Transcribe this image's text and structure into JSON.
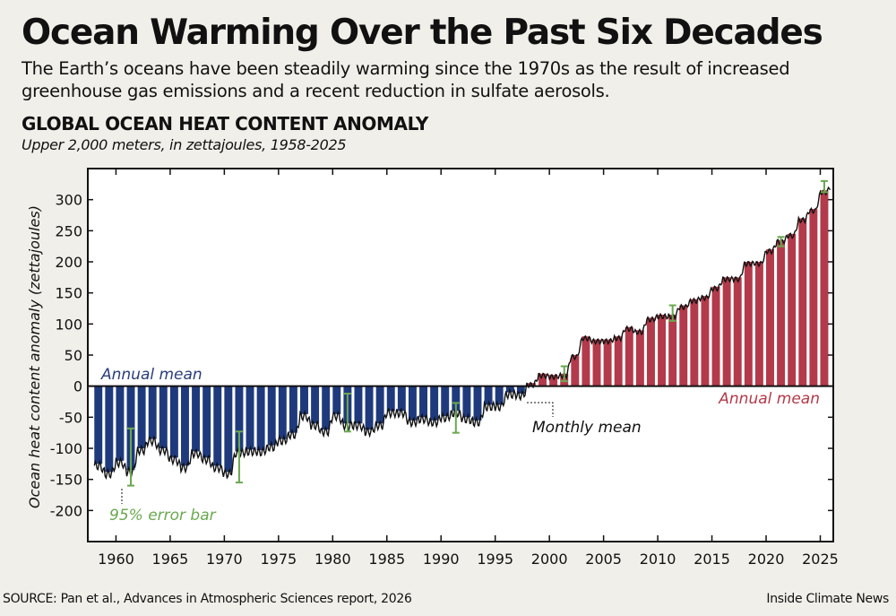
{
  "title": "Ocean Warming Over the Past Six Decades",
  "subtitle": "The Earth’s oceans have been steadily warming since the 1970s as the result of increased greenhouse gas emissions and a recent reduction in sulfate aerosols.",
  "source": "SOURCE: Pan et al., Advances in Atmospheric Sciences report, 2026",
  "credit": "Inside Climate News",
  "chart_data": {
    "type": "bar",
    "title": "GLOBAL OCEAN HEAT CONTENT ANOMALY",
    "subtitle": "Upper 2,000 meters, in zettajoules, 1958-2025",
    "xlabel": "",
    "ylabel": "Ocean heat content  anomaly (zettajoules)",
    "xlim": [
      1957.4,
      2026.2
    ],
    "ylim": [
      -250,
      350
    ],
    "x_ticks": [
      1960,
      1965,
      1970,
      1975,
      1980,
      1985,
      1990,
      1995,
      2000,
      2005,
      2010,
      2015,
      2020,
      2025
    ],
    "y_ticks": [
      -200,
      -150,
      -100,
      -50,
      0,
      50,
      100,
      150,
      200,
      250,
      300
    ],
    "grid": false,
    "colors": {
      "negative": "#1f3a7c",
      "positive": "#b33a4a",
      "error_bar": "#6aa84f",
      "monthly_line": "#111111"
    },
    "years": [
      1958,
      1959,
      1960,
      1961,
      1962,
      1963,
      1964,
      1965,
      1966,
      1967,
      1968,
      1969,
      1970,
      1971,
      1972,
      1973,
      1974,
      1975,
      1976,
      1977,
      1978,
      1979,
      1980,
      1981,
      1982,
      1983,
      1984,
      1985,
      1986,
      1987,
      1988,
      1989,
      1990,
      1991,
      1992,
      1993,
      1994,
      1995,
      1996,
      1997,
      1998,
      1999,
      2000,
      2001,
      2002,
      2003,
      2004,
      2005,
      2006,
      2007,
      2008,
      2009,
      2010,
      2011,
      2012,
      2013,
      2014,
      2015,
      2016,
      2017,
      2018,
      2019,
      2020,
      2021,
      2022,
      2023,
      2024,
      2025
    ],
    "annual_mean": [
      -125,
      -138,
      -120,
      -135,
      -100,
      -85,
      -100,
      -115,
      -128,
      -105,
      -115,
      -128,
      -138,
      -105,
      -102,
      -103,
      -95,
      -85,
      -75,
      -45,
      -60,
      -70,
      -45,
      -60,
      -60,
      -70,
      -60,
      -40,
      -40,
      -55,
      -50,
      -55,
      -48,
      -40,
      -50,
      -55,
      -30,
      -30,
      -10,
      -12,
      5,
      20,
      18,
      20,
      50,
      80,
      75,
      75,
      80,
      95,
      90,
      110,
      115,
      115,
      130,
      140,
      145,
      160,
      175,
      175,
      200,
      200,
      220,
      235,
      245,
      270,
      285,
      315
    ],
    "error_bars": [
      {
        "year": 1961,
        "low": -160,
        "high": -68
      },
      {
        "year": 1971,
        "low": -155,
        "high": -73
      },
      {
        "year": 1981,
        "low": -73,
        "high": -12
      },
      {
        "year": 1991,
        "low": -75,
        "high": -27
      },
      {
        "year": 2001,
        "low": 8,
        "high": 32
      },
      {
        "year": 2011,
        "low": 105,
        "high": 130
      },
      {
        "year": 2021,
        "low": 225,
        "high": 240
      },
      {
        "year": 2025,
        "low": 312,
        "high": 330
      }
    ],
    "annotations": {
      "annual_mean_left": "Annual mean",
      "annual_mean_right": "Annual mean",
      "monthly_mean": "Monthly mean",
      "error_bar": "95% error bar"
    }
  }
}
